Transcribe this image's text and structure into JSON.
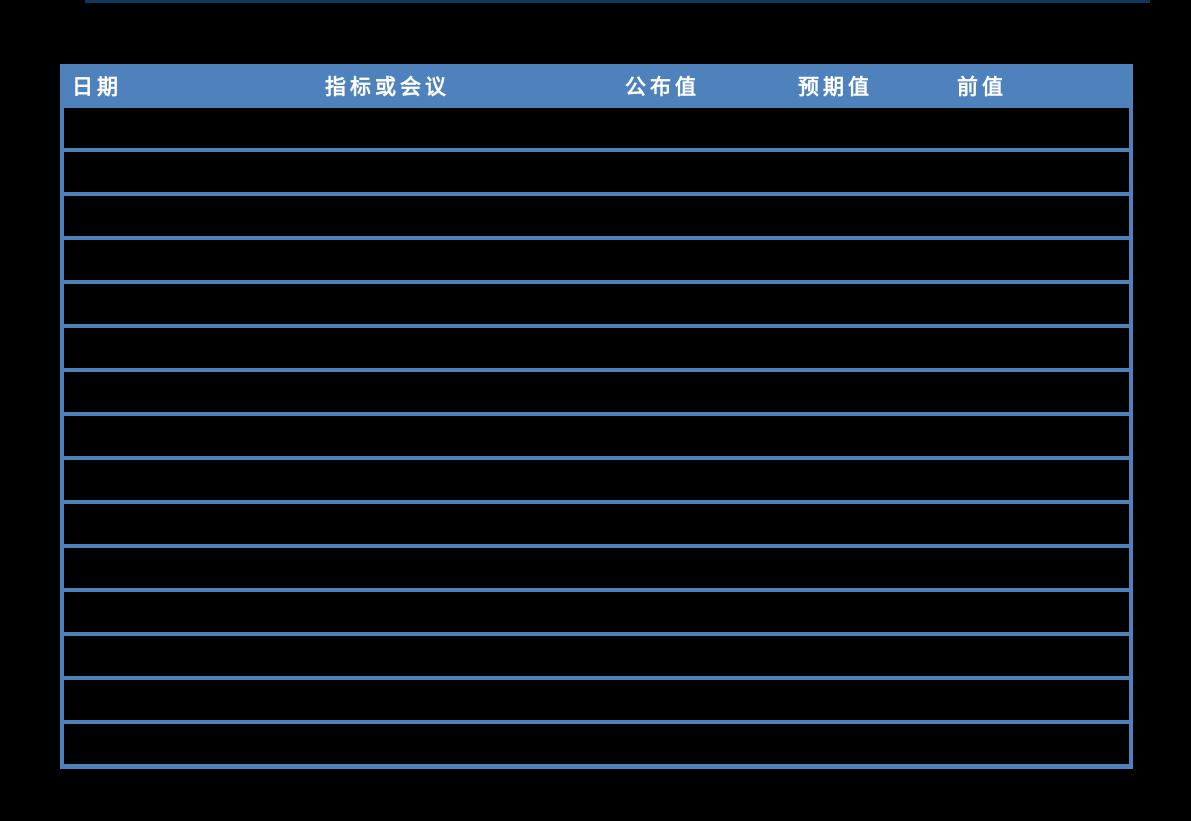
{
  "page": {
    "background_color": "#000000",
    "top_rule_color": "#12375E"
  },
  "table": {
    "header_bg_color": "#4F81BD",
    "grid_color": "#4F81BD",
    "header_text_color": "#FFFFFF",
    "columns": [
      {
        "label": "日期"
      },
      {
        "label": "指标或会议"
      },
      {
        "label": "公布值"
      },
      {
        "label": "预期值"
      },
      {
        "label": "前值"
      }
    ],
    "rows": [
      [
        "",
        "",
        "",
        "",
        ""
      ],
      [
        "",
        "",
        "",
        "",
        ""
      ],
      [
        "",
        "",
        "",
        "",
        ""
      ],
      [
        "",
        "",
        "",
        "",
        ""
      ],
      [
        "",
        "",
        "",
        "",
        ""
      ],
      [
        "",
        "",
        "",
        "",
        ""
      ],
      [
        "",
        "",
        "",
        "",
        ""
      ],
      [
        "",
        "",
        "",
        "",
        ""
      ],
      [
        "",
        "",
        "",
        "",
        ""
      ],
      [
        "",
        "",
        "",
        "",
        ""
      ],
      [
        "",
        "",
        "",
        "",
        ""
      ],
      [
        "",
        "",
        "",
        "",
        ""
      ],
      [
        "",
        "",
        "",
        "",
        ""
      ],
      [
        "",
        "",
        "",
        "",
        ""
      ],
      [
        "",
        "",
        "",
        "",
        ""
      ]
    ]
  }
}
